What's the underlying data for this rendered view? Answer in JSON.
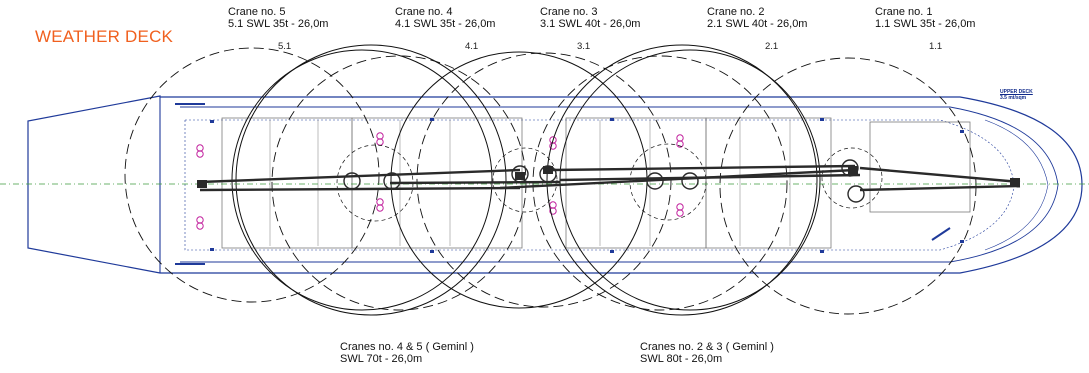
{
  "title": "WEATHER DECK",
  "colors": {
    "title": "#f0601f",
    "hull": "#1f3a9a",
    "circle": "#111111",
    "boom": "#2a2a2a",
    "hatch_detail": "#7a7a7a",
    "centerline": "#3c9a3c",
    "marker": "#c2229e"
  },
  "cranes": [
    {
      "name": "Crane no. 5",
      "spec": "5.1 SWL 35t - 26,0m",
      "radius_label": "5.1"
    },
    {
      "name": "Crane no. 4",
      "spec": "4.1 SWL 35t - 26,0m",
      "radius_label": "4.1"
    },
    {
      "name": "Crane no. 3",
      "spec": "3.1 SWL 40t - 26,0m",
      "radius_label": "3.1"
    },
    {
      "name": "Crane no. 2",
      "spec": "2.1 SWL 40t - 26,0m",
      "radius_label": "2.1"
    },
    {
      "name": "Crane no. 1",
      "spec": "1.1 SWL 35t - 26,0m",
      "radius_label": "1.1"
    }
  ],
  "tandem": [
    {
      "name": "Cranes no. 4 & 5  ( Geminl )",
      "spec": "SWL 70t - 26,0m"
    },
    {
      "name": "Cranes no. 2 & 3  ( Geminl )",
      "spec": "SWL 80t - 26,0m"
    }
  ],
  "deck_note": {
    "line1": "UPPER DECK",
    "line2": "3.5 mt/sqm"
  }
}
